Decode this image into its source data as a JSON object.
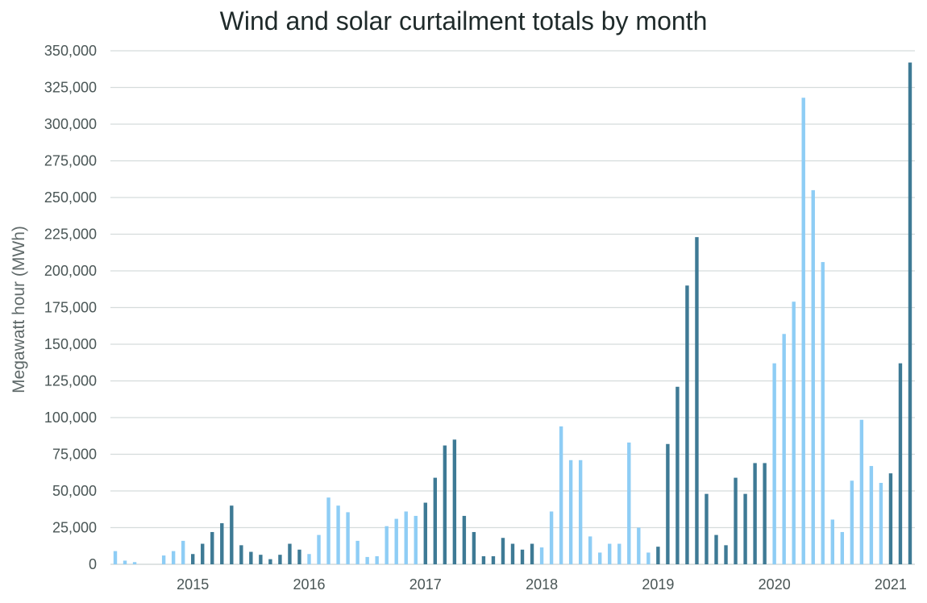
{
  "chart_data": {
    "type": "bar",
    "title": "Wind and solar curtailment totals by month",
    "ylabel": "Megawatt hour (MWh)",
    "xlabel": "",
    "ylim": [
      0,
      350000
    ],
    "y_ticks": [
      "0",
      "25,000",
      "50,000",
      "75,000",
      "100,000",
      "125,000",
      "150,000",
      "175,000",
      "200,000",
      "225,000",
      "250,000",
      "275,000",
      "300,000",
      "325,000",
      "350,000"
    ],
    "y_tick_values": [
      0,
      25000,
      50000,
      75000,
      100000,
      125000,
      150000,
      175000,
      200000,
      225000,
      250000,
      275000,
      300000,
      325000,
      350000
    ],
    "x_ticks": [
      "2015",
      "2016",
      "2017",
      "2018",
      "2019",
      "2020",
      "2021"
    ],
    "x_tick_months": [
      "2015-01",
      "2016-01",
      "2017-01",
      "2018-01",
      "2019-01",
      "2020-01",
      "2021-01"
    ],
    "grid": true,
    "legend": "none",
    "colors": {
      "light": "#8ecdf5",
      "dark": "#3e7a95",
      "grid": "#d5dcdc"
    },
    "months": [
      "2014-05",
      "2014-06",
      "2014-07",
      "2014-08",
      "2014-09",
      "2014-10",
      "2014-11",
      "2014-12",
      "2015-01",
      "2015-02",
      "2015-03",
      "2015-04",
      "2015-05",
      "2015-06",
      "2015-07",
      "2015-08",
      "2015-09",
      "2015-10",
      "2015-11",
      "2015-12",
      "2016-01",
      "2016-02",
      "2016-03",
      "2016-04",
      "2016-05",
      "2016-06",
      "2016-07",
      "2016-08",
      "2016-09",
      "2016-10",
      "2016-11",
      "2016-12",
      "2017-01",
      "2017-02",
      "2017-03",
      "2017-04",
      "2017-05",
      "2017-06",
      "2017-07",
      "2017-08",
      "2017-09",
      "2017-10",
      "2017-11",
      "2017-12",
      "2018-01",
      "2018-02",
      "2018-03",
      "2018-04",
      "2018-05",
      "2018-06",
      "2018-07",
      "2018-08",
      "2018-09",
      "2018-10",
      "2018-11",
      "2018-12",
      "2019-01",
      "2019-02",
      "2019-03",
      "2019-04",
      "2019-05",
      "2019-06",
      "2019-07",
      "2019-08",
      "2019-09",
      "2019-10",
      "2019-11",
      "2019-12",
      "2020-01",
      "2020-02",
      "2020-03",
      "2020-04",
      "2020-05",
      "2020-06",
      "2020-07",
      "2020-08",
      "2020-09",
      "2020-10",
      "2020-11",
      "2020-12",
      "2021-01",
      "2021-02",
      "2021-03"
    ],
    "values": [
      9000,
      2500,
      1500,
      0,
      0,
      6000,
      9000,
      16000,
      7000,
      14000,
      22000,
      28000,
      40000,
      13000,
      8500,
      6500,
      3500,
      6500,
      14000,
      10000,
      7000,
      20000,
      45500,
      40000,
      35500,
      16000,
      5000,
      5500,
      26000,
      31000,
      36000,
      33000,
      42000,
      59000,
      81000,
      85000,
      33000,
      22000,
      5500,
      5500,
      18000,
      14000,
      10000,
      14000,
      11500,
      36000,
      94000,
      71000,
      71000,
      19000,
      8000,
      14000,
      14000,
      83000,
      25000,
      8000,
      12000,
      82000,
      121000,
      190000,
      223000,
      48000,
      20000,
      13000,
      59000,
      48000,
      69000,
      69000,
      137000,
      157000,
      179000,
      318000,
      255000,
      206000,
      30500,
      22000,
      57000,
      98500,
      67000,
      55500,
      62000,
      137000,
      342000
    ],
    "shades": [
      "light",
      "light",
      "light",
      "light",
      "light",
      "light",
      "light",
      "light",
      "dark",
      "dark",
      "dark",
      "dark",
      "dark",
      "dark",
      "dark",
      "dark",
      "dark",
      "dark",
      "dark",
      "dark",
      "light",
      "light",
      "light",
      "light",
      "light",
      "light",
      "light",
      "light",
      "light",
      "light",
      "light",
      "light",
      "dark",
      "dark",
      "dark",
      "dark",
      "dark",
      "dark",
      "dark",
      "dark",
      "dark",
      "dark",
      "dark",
      "dark",
      "light",
      "light",
      "light",
      "light",
      "light",
      "light",
      "light",
      "light",
      "light",
      "light",
      "light",
      "light",
      "dark",
      "dark",
      "dark",
      "dark",
      "dark",
      "dark",
      "dark",
      "dark",
      "dark",
      "dark",
      "dark",
      "dark",
      "light",
      "light",
      "light",
      "light",
      "light",
      "light",
      "light",
      "light",
      "light",
      "light",
      "light",
      "light",
      "dark",
      "dark",
      "dark"
    ]
  }
}
